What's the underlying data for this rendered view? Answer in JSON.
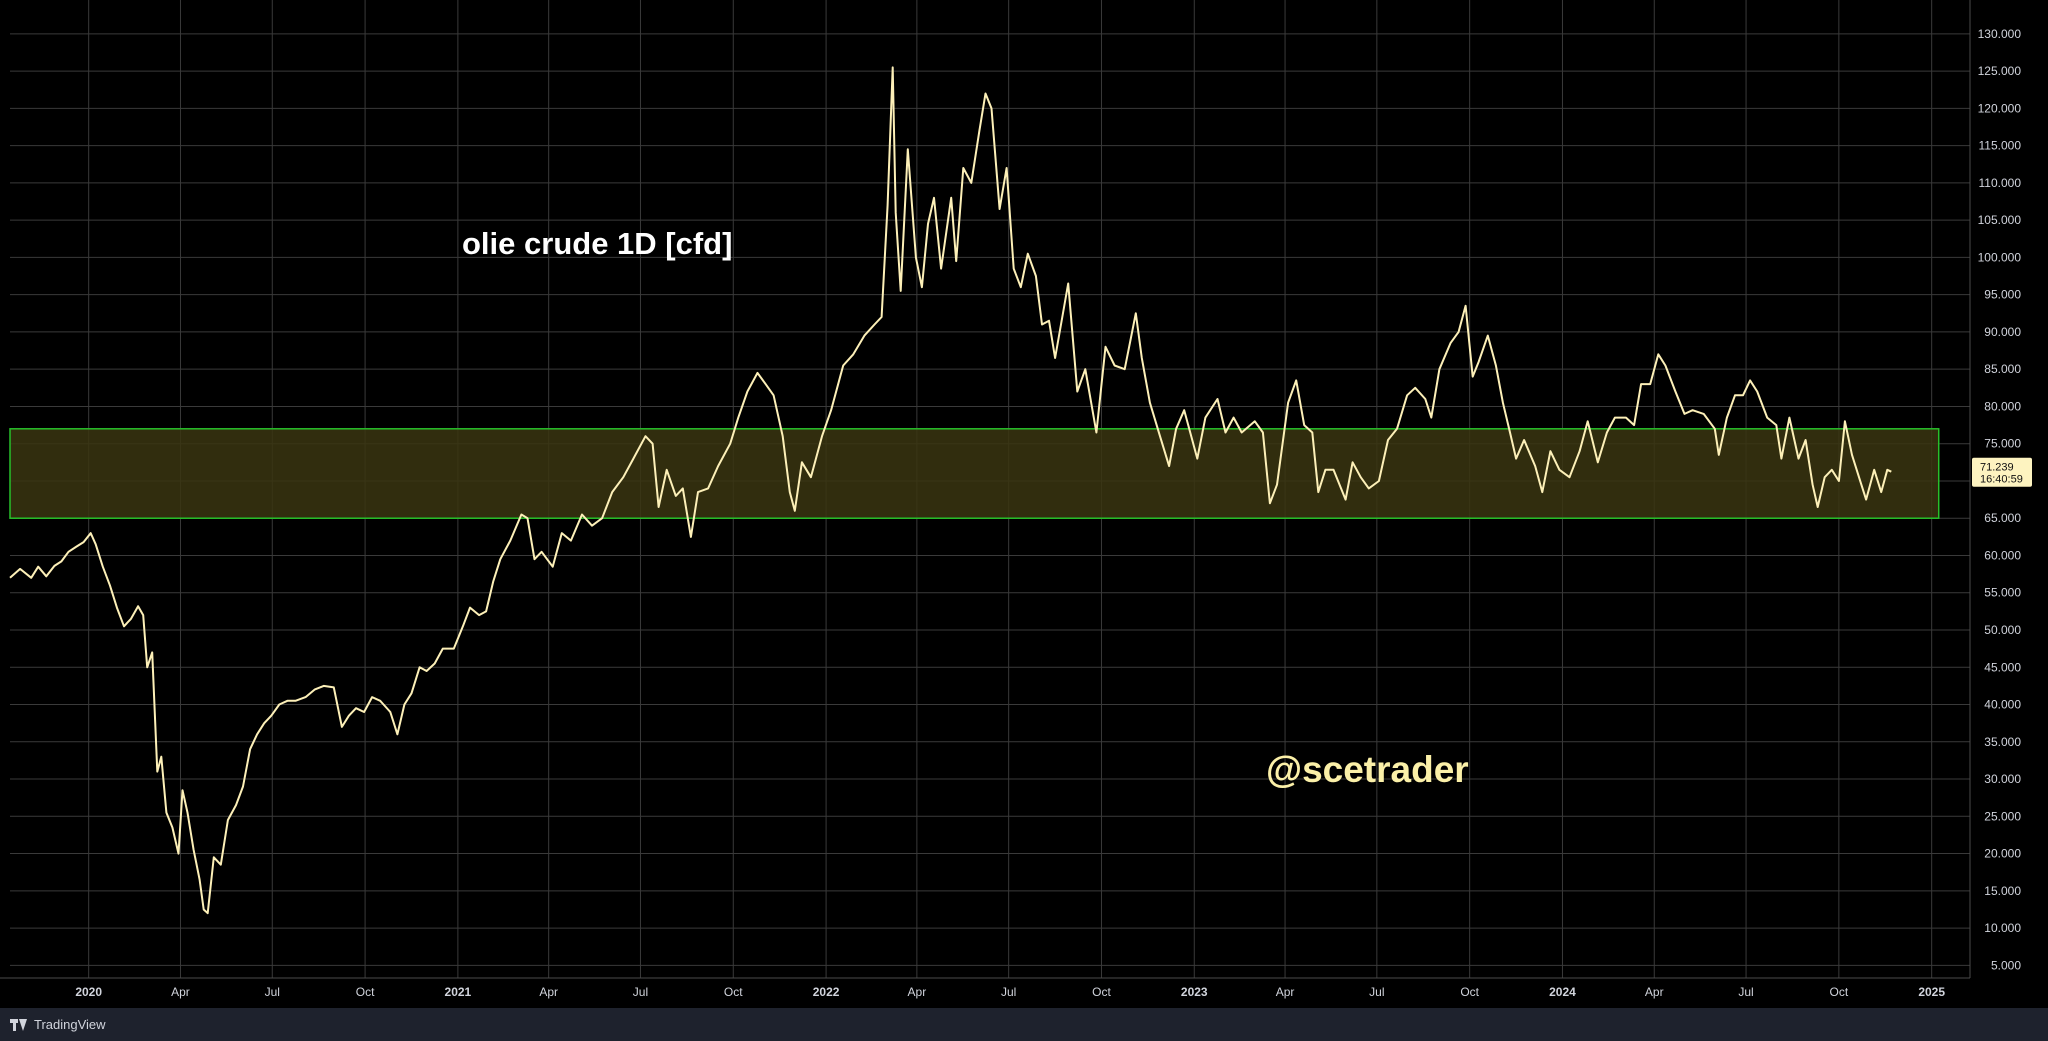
{
  "chart_data": {
    "type": "line",
    "title": "olie crude 1D [cfd]",
    "watermark": "@scetrader",
    "ylim": [
      0,
      130
    ],
    "y_ticks": [
      "5.000",
      "10.000",
      "15.000",
      "20.000",
      "25.000",
      "30.000",
      "35.000",
      "40.000",
      "45.000",
      "50.000",
      "55.000",
      "60.000",
      "65.000",
      "70.000",
      "75.000",
      "80.000",
      "85.000",
      "90.000",
      "95.000",
      "100.000",
      "105.000",
      "110.000",
      "115.000",
      "120.000",
      "125.000",
      "130.000"
    ],
    "x_ticks": [
      {
        "label": "2020",
        "date": "2020-01-01",
        "major": true
      },
      {
        "label": "Apr",
        "date": "2020-04-01",
        "major": false
      },
      {
        "label": "Jul",
        "date": "2020-07-01",
        "major": false
      },
      {
        "label": "Oct",
        "date": "2020-10-01",
        "major": false
      },
      {
        "label": "2021",
        "date": "2021-01-01",
        "major": true
      },
      {
        "label": "Apr",
        "date": "2021-04-01",
        "major": false
      },
      {
        "label": "Jul",
        "date": "2021-07-01",
        "major": false
      },
      {
        "label": "Oct",
        "date": "2021-10-01",
        "major": false
      },
      {
        "label": "2022",
        "date": "2022-01-01",
        "major": true
      },
      {
        "label": "Apr",
        "date": "2022-04-01",
        "major": false
      },
      {
        "label": "Jul",
        "date": "2022-07-01",
        "major": false
      },
      {
        "label": "Oct",
        "date": "2022-10-01",
        "major": false
      },
      {
        "label": "2023",
        "date": "2023-01-01",
        "major": true
      },
      {
        "label": "Apr",
        "date": "2023-04-01",
        "major": false
      },
      {
        "label": "Jul",
        "date": "2023-07-01",
        "major": false
      },
      {
        "label": "Oct",
        "date": "2023-10-01",
        "major": false
      },
      {
        "label": "2024",
        "date": "2024-01-01",
        "major": true
      },
      {
        "label": "Apr",
        "date": "2024-04-01",
        "major": false
      },
      {
        "label": "Jul",
        "date": "2024-07-01",
        "major": false
      },
      {
        "label": "Oct",
        "date": "2024-10-01",
        "major": false
      },
      {
        "label": "2025",
        "date": "2025-01-01",
        "major": true
      }
    ],
    "x_start": "2019-10-15",
    "x_end": "2025-02-08",
    "zone": {
      "from": "2019-10-15",
      "to": "2025-01-08",
      "low": 65,
      "high": 77
    },
    "series": [
      {
        "points": [
          [
            "2019-10-15",
            57.0
          ],
          [
            "2019-10-25",
            58.2
          ],
          [
            "2019-11-05",
            57.0
          ],
          [
            "2019-11-12",
            58.5
          ],
          [
            "2019-11-20",
            57.2
          ],
          [
            "2019-11-28",
            58.6
          ],
          [
            "2019-12-05",
            59.2
          ],
          [
            "2019-12-12",
            60.5
          ],
          [
            "2019-12-20",
            61.2
          ],
          [
            "2019-12-27",
            61.8
          ],
          [
            "2020-01-03",
            63.0
          ],
          [
            "2020-01-08",
            61.5
          ],
          [
            "2020-01-15",
            58.5
          ],
          [
            "2020-01-22",
            56.0
          ],
          [
            "2020-01-29",
            53.0
          ],
          [
            "2020-02-05",
            50.5
          ],
          [
            "2020-02-12",
            51.5
          ],
          [
            "2020-02-19",
            53.2
          ],
          [
            "2020-02-24",
            52.0
          ],
          [
            "2020-02-28",
            45.0
          ],
          [
            "2020-03-04",
            47.0
          ],
          [
            "2020-03-09",
            31.0
          ],
          [
            "2020-03-13",
            33.0
          ],
          [
            "2020-03-18",
            25.5
          ],
          [
            "2020-03-24",
            23.5
          ],
          [
            "2020-03-30",
            20.0
          ],
          [
            "2020-04-03",
            28.5
          ],
          [
            "2020-04-08",
            25.5
          ],
          [
            "2020-04-14",
            20.5
          ],
          [
            "2020-04-20",
            16.5
          ],
          [
            "2020-04-24",
            12.5
          ],
          [
            "2020-04-28",
            12.0
          ],
          [
            "2020-05-04",
            19.5
          ],
          [
            "2020-05-11",
            18.5
          ],
          [
            "2020-05-18",
            24.5
          ],
          [
            "2020-05-26",
            26.5
          ],
          [
            "2020-06-02",
            29.0
          ],
          [
            "2020-06-09",
            34.0
          ],
          [
            "2020-06-16",
            36.0
          ],
          [
            "2020-06-23",
            37.5
          ],
          [
            "2020-06-30",
            38.5
          ],
          [
            "2020-07-08",
            40.0
          ],
          [
            "2020-07-16",
            40.5
          ],
          [
            "2020-07-24",
            40.5
          ],
          [
            "2020-08-03",
            41.0
          ],
          [
            "2020-08-12",
            42.0
          ],
          [
            "2020-08-21",
            42.5
          ],
          [
            "2020-08-31",
            42.3
          ],
          [
            "2020-09-08",
            37.0
          ],
          [
            "2020-09-15",
            38.5
          ],
          [
            "2020-09-22",
            39.5
          ],
          [
            "2020-09-30",
            39.0
          ],
          [
            "2020-10-08",
            41.0
          ],
          [
            "2020-10-16",
            40.5
          ],
          [
            "2020-10-26",
            39.0
          ],
          [
            "2020-11-02",
            36.0
          ],
          [
            "2020-11-09",
            40.0
          ],
          [
            "2020-11-16",
            41.5
          ],
          [
            "2020-11-24",
            45.0
          ],
          [
            "2020-12-01",
            44.5
          ],
          [
            "2020-12-09",
            45.5
          ],
          [
            "2020-12-17",
            47.5
          ],
          [
            "2020-12-28",
            47.5
          ],
          [
            "2021-01-06",
            50.5
          ],
          [
            "2021-01-13",
            53.0
          ],
          [
            "2021-01-22",
            52.0
          ],
          [
            "2021-01-29",
            52.5
          ],
          [
            "2021-02-05",
            56.5
          ],
          [
            "2021-02-12",
            59.5
          ],
          [
            "2021-02-22",
            62.0
          ],
          [
            "2021-03-05",
            65.5
          ],
          [
            "2021-03-11",
            65.0
          ],
          [
            "2021-03-18",
            59.5
          ],
          [
            "2021-03-25",
            60.5
          ],
          [
            "2021-04-05",
            58.5
          ],
          [
            "2021-04-14",
            63.0
          ],
          [
            "2021-04-23",
            62.0
          ],
          [
            "2021-05-04",
            65.5
          ],
          [
            "2021-05-14",
            64.0
          ],
          [
            "2021-05-24",
            65.0
          ],
          [
            "2021-06-03",
            68.5
          ],
          [
            "2021-06-14",
            70.5
          ],
          [
            "2021-06-24",
            73.0
          ],
          [
            "2021-07-06",
            76.0
          ],
          [
            "2021-07-13",
            75.0
          ],
          [
            "2021-07-19",
            66.5
          ],
          [
            "2021-07-27",
            71.5
          ],
          [
            "2021-08-05",
            68.0
          ],
          [
            "2021-08-12",
            69.0
          ],
          [
            "2021-08-20",
            62.5
          ],
          [
            "2021-08-27",
            68.5
          ],
          [
            "2021-09-06",
            69.0
          ],
          [
            "2021-09-16",
            72.0
          ],
          [
            "2021-09-28",
            75.0
          ],
          [
            "2021-10-06",
            78.5
          ],
          [
            "2021-10-15",
            82.0
          ],
          [
            "2021-10-25",
            84.5
          ],
          [
            "2021-11-02",
            83.0
          ],
          [
            "2021-11-10",
            81.5
          ],
          [
            "2021-11-19",
            76.0
          ],
          [
            "2021-11-26",
            68.5
          ],
          [
            "2021-12-01",
            66.0
          ],
          [
            "2021-12-08",
            72.5
          ],
          [
            "2021-12-17",
            70.5
          ],
          [
            "2021-12-28",
            76.0
          ],
          [
            "2022-01-06",
            79.5
          ],
          [
            "2022-01-18",
            85.5
          ],
          [
            "2022-01-28",
            87.0
          ],
          [
            "2022-02-08",
            89.5
          ],
          [
            "2022-02-18",
            91.0
          ],
          [
            "2022-02-25",
            92.0
          ],
          [
            "2022-03-03",
            107.0
          ],
          [
            "2022-03-08",
            125.5
          ],
          [
            "2022-03-11",
            106.0
          ],
          [
            "2022-03-16",
            95.5
          ],
          [
            "2022-03-23",
            114.5
          ],
          [
            "2022-03-31",
            100.0
          ],
          [
            "2022-04-06",
            96.0
          ],
          [
            "2022-04-12",
            104.5
          ],
          [
            "2022-04-18",
            108.0
          ],
          [
            "2022-04-25",
            98.5
          ],
          [
            "2022-05-05",
            108.0
          ],
          [
            "2022-05-10",
            99.5
          ],
          [
            "2022-05-17",
            112.0
          ],
          [
            "2022-05-25",
            110.0
          ],
          [
            "2022-06-02",
            117.0
          ],
          [
            "2022-06-08",
            122.0
          ],
          [
            "2022-06-14",
            120.0
          ],
          [
            "2022-06-22",
            106.5
          ],
          [
            "2022-06-29",
            112.0
          ],
          [
            "2022-07-06",
            98.5
          ],
          [
            "2022-07-13",
            96.0
          ],
          [
            "2022-07-20",
            100.5
          ],
          [
            "2022-07-28",
            97.5
          ],
          [
            "2022-08-03",
            91.0
          ],
          [
            "2022-08-10",
            91.5
          ],
          [
            "2022-08-16",
            86.5
          ],
          [
            "2022-08-29",
            96.5
          ],
          [
            "2022-09-07",
            82.0
          ],
          [
            "2022-09-15",
            85.0
          ],
          [
            "2022-09-26",
            76.5
          ],
          [
            "2022-10-05",
            88.0
          ],
          [
            "2022-10-14",
            85.5
          ],
          [
            "2022-10-24",
            85.0
          ],
          [
            "2022-11-04",
            92.5
          ],
          [
            "2022-11-10",
            86.5
          ],
          [
            "2022-11-18",
            80.5
          ],
          [
            "2022-11-28",
            76.0
          ],
          [
            "2022-12-07",
            72.0
          ],
          [
            "2022-12-14",
            77.0
          ],
          [
            "2022-12-22",
            79.5
          ],
          [
            "2023-01-04",
            73.0
          ],
          [
            "2023-01-12",
            78.5
          ],
          [
            "2023-01-24",
            81.0
          ],
          [
            "2023-02-01",
            76.5
          ],
          [
            "2023-02-09",
            78.5
          ],
          [
            "2023-02-17",
            76.5
          ],
          [
            "2023-03-02",
            78.0
          ],
          [
            "2023-03-10",
            76.5
          ],
          [
            "2023-03-17",
            67.0
          ],
          [
            "2023-03-24",
            69.5
          ],
          [
            "2023-04-04",
            80.5
          ],
          [
            "2023-04-12",
            83.5
          ],
          [
            "2023-04-20",
            77.5
          ],
          [
            "2023-04-28",
            76.5
          ],
          [
            "2023-05-04",
            68.5
          ],
          [
            "2023-05-11",
            71.5
          ],
          [
            "2023-05-19",
            71.5
          ],
          [
            "2023-05-31",
            67.5
          ],
          [
            "2023-06-07",
            72.5
          ],
          [
            "2023-06-15",
            70.5
          ],
          [
            "2023-06-23",
            69.0
          ],
          [
            "2023-07-03",
            70.0
          ],
          [
            "2023-07-12",
            75.5
          ],
          [
            "2023-07-21",
            77.0
          ],
          [
            "2023-07-31",
            81.5
          ],
          [
            "2023-08-08",
            82.5
          ],
          [
            "2023-08-18",
            81.0
          ],
          [
            "2023-08-24",
            78.5
          ],
          [
            "2023-09-01",
            85.0
          ],
          [
            "2023-09-12",
            88.5
          ],
          [
            "2023-09-20",
            90.0
          ],
          [
            "2023-09-27",
            93.5
          ],
          [
            "2023-10-04",
            84.0
          ],
          [
            "2023-10-10",
            86.0
          ],
          [
            "2023-10-19",
            89.5
          ],
          [
            "2023-10-27",
            85.5
          ],
          [
            "2023-11-03",
            80.5
          ],
          [
            "2023-11-10",
            76.5
          ],
          [
            "2023-11-16",
            73.0
          ],
          [
            "2023-11-24",
            75.5
          ],
          [
            "2023-12-05",
            72.0
          ],
          [
            "2023-12-12",
            68.5
          ],
          [
            "2023-12-20",
            74.0
          ],
          [
            "2023-12-29",
            71.5
          ],
          [
            "2024-01-08",
            70.5
          ],
          [
            "2024-01-18",
            74.0
          ],
          [
            "2024-01-26",
            78.0
          ],
          [
            "2024-02-05",
            72.5
          ],
          [
            "2024-02-14",
            76.5
          ],
          [
            "2024-02-22",
            78.5
          ],
          [
            "2024-03-04",
            78.5
          ],
          [
            "2024-03-12",
            77.5
          ],
          [
            "2024-03-19",
            83.0
          ],
          [
            "2024-03-28",
            83.0
          ],
          [
            "2024-04-05",
            87.0
          ],
          [
            "2024-04-12",
            85.5
          ],
          [
            "2024-04-22",
            82.0
          ],
          [
            "2024-05-01",
            79.0
          ],
          [
            "2024-05-09",
            79.5
          ],
          [
            "2024-05-20",
            79.0
          ],
          [
            "2024-05-31",
            77.0
          ],
          [
            "2024-06-04",
            73.5
          ],
          [
            "2024-06-12",
            78.5
          ],
          [
            "2024-06-20",
            81.5
          ],
          [
            "2024-06-28",
            81.5
          ],
          [
            "2024-07-05",
            83.5
          ],
          [
            "2024-07-12",
            82.0
          ],
          [
            "2024-07-22",
            78.5
          ],
          [
            "2024-07-31",
            77.5
          ],
          [
            "2024-08-05",
            73.0
          ],
          [
            "2024-08-13",
            78.5
          ],
          [
            "2024-08-22",
            73.0
          ],
          [
            "2024-08-29",
            75.5
          ],
          [
            "2024-09-05",
            69.5
          ],
          [
            "2024-09-10",
            66.5
          ],
          [
            "2024-09-17",
            70.5
          ],
          [
            "2024-09-24",
            71.5
          ],
          [
            "2024-10-01",
            70.0
          ],
          [
            "2024-10-07",
            78.0
          ],
          [
            "2024-10-14",
            73.5
          ],
          [
            "2024-10-21",
            70.5
          ],
          [
            "2024-10-28",
            67.5
          ],
          [
            "2024-11-05",
            71.5
          ],
          [
            "2024-11-12",
            68.5
          ],
          [
            "2024-11-18",
            71.5
          ],
          [
            "2024-11-22",
            71.24
          ]
        ]
      }
    ],
    "last_price": {
      "value": "71.239",
      "countdown": "16:40:59"
    },
    "colors": {
      "background": "#000000",
      "grid": "#3a3a3a",
      "line": "#fdf0b8",
      "zone_fill": "#3a3510",
      "zone_border": "#27c02a",
      "label_bg": "#fdf3c0",
      "watermark": "#fbf0a8",
      "axis_text": "#d1d4dc"
    }
  },
  "footer": {
    "brand": "TradingView"
  }
}
